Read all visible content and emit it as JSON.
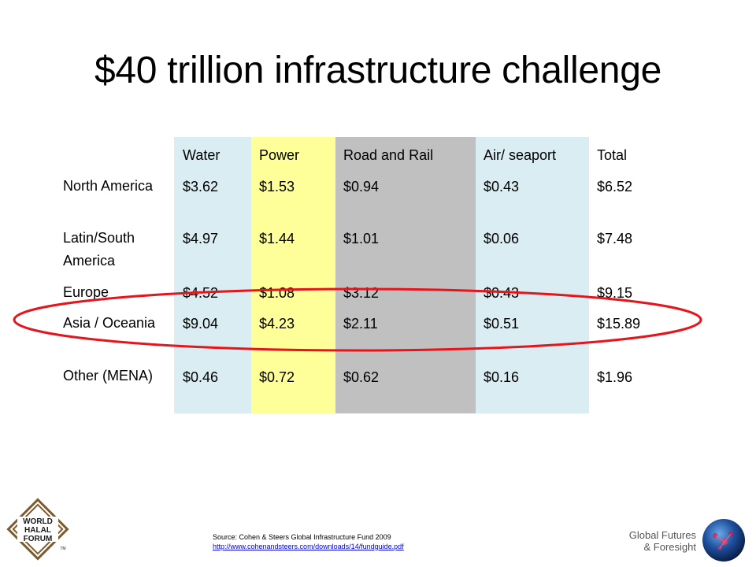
{
  "slide": {
    "title": "$40 trillion infrastructure challenge"
  },
  "table": {
    "columns": [
      "Water",
      "Power",
      "Road and Rail",
      "Air/ seaport",
      "Total"
    ],
    "rows": [
      {
        "label": "North America",
        "values": [
          "$3.62",
          "$1.53",
          "$0.94",
          "$0.43",
          "$6.52"
        ]
      },
      {
        "label": "Latin/South America",
        "values": [
          "$4.97",
          "$1.44",
          "$1.01",
          "$0.06",
          "$7.48"
        ]
      },
      {
        "label": "Europe",
        "values": [
          "$4.52",
          "$1.08",
          "$3.12",
          "$0.43",
          "$9.15"
        ]
      },
      {
        "label": "Asia / Oceania",
        "values": [
          "$9.04",
          "$4.23",
          "$2.11",
          "$0.51",
          "$15.89"
        ]
      },
      {
        "label": "Other (MENA)",
        "values": [
          "$0.46",
          "$0.72",
          "$0.62",
          "$0.16",
          "$1.96"
        ]
      }
    ],
    "column_colors": [
      "#daedf2",
      "#ffff99",
      "#c0c0c0",
      "#daedf2"
    ],
    "highlight_color": "#e8141c"
  },
  "footer": {
    "source_text": "Source: Cohen & Steers Global Infrastructure Fund 2009",
    "source_link": "http://www.cohenandsteers.com/downloads/14/fundguide.pdf",
    "logo_left_lines": [
      "WORLD",
      "HALAL",
      "FORUM"
    ],
    "logo_left_tm": "TM",
    "brand_right_line1": "Global Futures",
    "brand_right_line2": "& Foresight"
  }
}
